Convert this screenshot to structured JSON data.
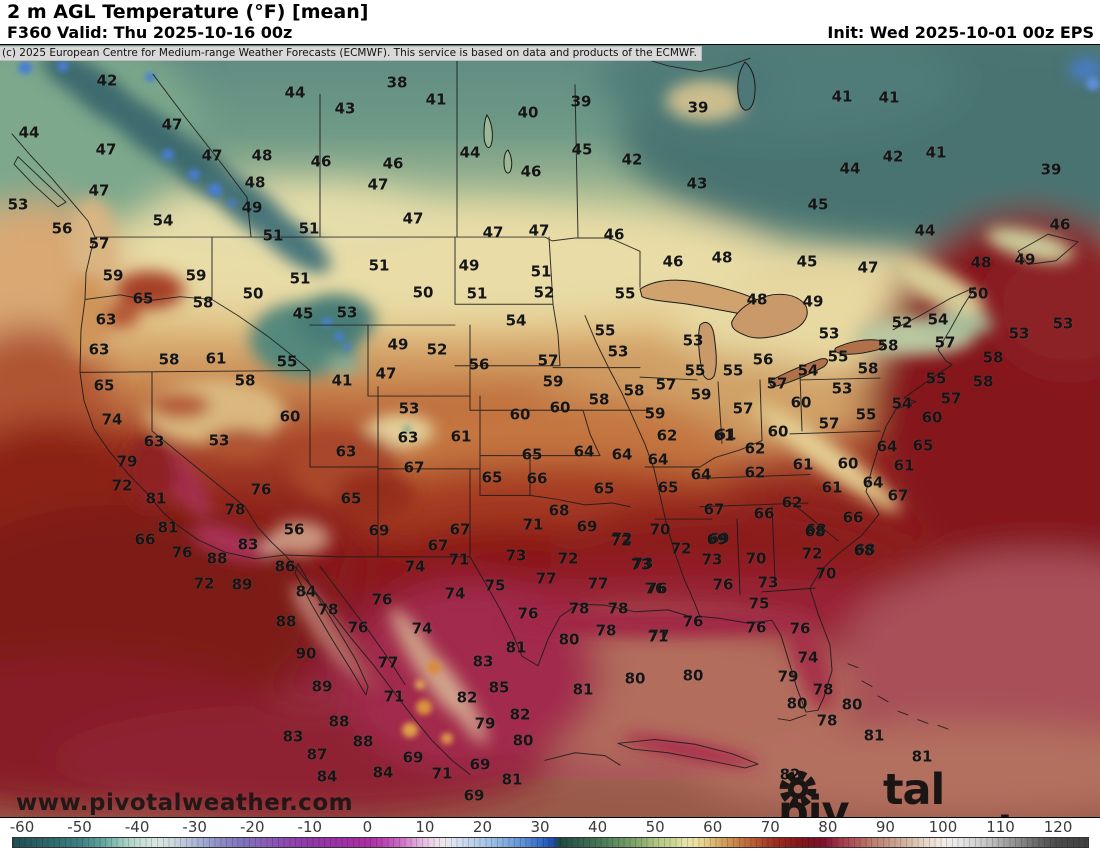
{
  "header": {
    "title": "2 m AGL Temperature (°F) [mean]",
    "valid": "F360 Valid: Thu 2025-10-16 00z",
    "init": "Init: Wed 2025-10-01 00z EPS",
    "copyright": "(c) 2025 European Centre for Medium-range Weather Forecasts (ECMWF). This service is based on data and products of the ECMWF."
  },
  "watermarks": {
    "url": "www.pivotalweather.com",
    "logo_left": "piv",
    "logo_right": "tal weather",
    "logo_icon": "gear-icon"
  },
  "colorbar": {
    "unit": "°F",
    "min_value": -62,
    "max_value": 125,
    "ticks": [
      -60,
      -50,
      -40,
      -30,
      -20,
      -10,
      0,
      10,
      20,
      30,
      40,
      50,
      60,
      70,
      80,
      90,
      100,
      110,
      120
    ],
    "stops": [
      [
        -62,
        "#214e56"
      ],
      [
        -55,
        "#2f6b6e"
      ],
      [
        -50,
        "#3f8285"
      ],
      [
        -46,
        "#6aa8a2"
      ],
      [
        -43,
        "#9ccac0"
      ],
      [
        -40,
        "#c4ded4"
      ],
      [
        -37,
        "#d8e5e2"
      ],
      [
        -34,
        "#cbd7dd"
      ],
      [
        -30,
        "#a9b4d4"
      ],
      [
        -26,
        "#8d8cc6"
      ],
      [
        -22,
        "#7f72bd"
      ],
      [
        -18,
        "#8a5cb8"
      ],
      [
        -14,
        "#8f46af"
      ],
      [
        -10,
        "#8f37a9"
      ],
      [
        -6,
        "#9c32a6"
      ],
      [
        -2,
        "#a72ea3"
      ],
      [
        0,
        "#ab2fa4"
      ],
      [
        2,
        "#b83eae"
      ],
      [
        5,
        "#c866c2"
      ],
      [
        7,
        "#d591d0"
      ],
      [
        9,
        "#e3b5de"
      ],
      [
        11,
        "#ecd5e8"
      ],
      [
        13,
        "#eee7ec"
      ],
      [
        15,
        "#d9e1f0"
      ],
      [
        18,
        "#bdd0ec"
      ],
      [
        21,
        "#9fc0e6"
      ],
      [
        24,
        "#7fa9dc"
      ],
      [
        27,
        "#5b8dd2"
      ],
      [
        30,
        "#3168c4"
      ],
      [
        32,
        "#1f4cae"
      ],
      [
        33,
        "#1d473f"
      ],
      [
        35,
        "#2a574a"
      ],
      [
        38,
        "#3b6a52"
      ],
      [
        41,
        "#4f7e5b"
      ],
      [
        44,
        "#699462"
      ],
      [
        47,
        "#88aa6e"
      ],
      [
        50,
        "#b0c584"
      ],
      [
        53,
        "#ccd796"
      ],
      [
        55,
        "#e6e2ac"
      ],
      [
        57,
        "#eadfa0"
      ],
      [
        59,
        "#e2c57e"
      ],
      [
        61,
        "#d5a763"
      ],
      [
        63,
        "#cb8d50"
      ],
      [
        65,
        "#c2723f"
      ],
      [
        67,
        "#b75b33"
      ],
      [
        69,
        "#a84029"
      ],
      [
        71,
        "#992b20"
      ],
      [
        73,
        "#8e1f1b"
      ],
      [
        75,
        "#85161a"
      ],
      [
        77,
        "#7d1120"
      ],
      [
        79,
        "#7d122b"
      ],
      [
        80,
        "#8d1d38"
      ],
      [
        82,
        "#a23a4e"
      ],
      [
        84,
        "#ae5058"
      ],
      [
        86,
        "#b66a62"
      ],
      [
        88,
        "#bd8171"
      ],
      [
        90,
        "#c49383"
      ],
      [
        92,
        "#cda795"
      ],
      [
        94,
        "#d7bba8"
      ],
      [
        96,
        "#e2cfc0"
      ],
      [
        98,
        "#ecdfd4"
      ],
      [
        100,
        "#f2ece6"
      ],
      [
        102,
        "#e9e9e9"
      ],
      [
        104,
        "#dcdcdc"
      ],
      [
        106,
        "#cecece"
      ],
      [
        108,
        "#bfbfbf"
      ],
      [
        110,
        "#a9a9a9"
      ],
      [
        112,
        "#959595"
      ],
      [
        114,
        "#7f7f7f"
      ],
      [
        116,
        "#6a6a6a"
      ],
      [
        118,
        "#585858"
      ],
      [
        120,
        "#4b4b4b"
      ],
      [
        125,
        "#3f3f3f"
      ]
    ]
  },
  "map": {
    "labels": [
      [
        107,
        80,
        42
      ],
      [
        295,
        92,
        44
      ],
      [
        345,
        108,
        43
      ],
      [
        172,
        124,
        47
      ],
      [
        29,
        132,
        44
      ],
      [
        106,
        149,
        47
      ],
      [
        212,
        155,
        47
      ],
      [
        262,
        155,
        48
      ],
      [
        321,
        161,
        46
      ],
      [
        255,
        182,
        48
      ],
      [
        99,
        190,
        47
      ],
      [
        252,
        207,
        49
      ],
      [
        18,
        204,
        53
      ],
      [
        163,
        220,
        54
      ],
      [
        62,
        228,
        56
      ],
      [
        309,
        228,
        51
      ],
      [
        273,
        235,
        51
      ],
      [
        99,
        243,
        57
      ],
      [
        113,
        275,
        59
      ],
      [
        196,
        275,
        59
      ],
      [
        300,
        278,
        51
      ],
      [
        253,
        293,
        50
      ],
      [
        143,
        298,
        65
      ],
      [
        203,
        302,
        58
      ],
      [
        303,
        313,
        45
      ],
      [
        347,
        312,
        53
      ],
      [
        106,
        319,
        63
      ],
      [
        397,
        82,
        38
      ],
      [
        436,
        99,
        41
      ],
      [
        528,
        112,
        40
      ],
      [
        581,
        101,
        39
      ],
      [
        698,
        107,
        39
      ],
      [
        470,
        152,
        44
      ],
      [
        582,
        149,
        45
      ],
      [
        632,
        159,
        42
      ],
      [
        393,
        163,
        46
      ],
      [
        531,
        171,
        46
      ],
      [
        697,
        183,
        43
      ],
      [
        378,
        184,
        47
      ],
      [
        413,
        218,
        47
      ],
      [
        493,
        232,
        47
      ],
      [
        539,
        230,
        47
      ],
      [
        614,
        234,
        46
      ],
      [
        673,
        261,
        46
      ],
      [
        722,
        257,
        48
      ],
      [
        379,
        265,
        51
      ],
      [
        469,
        265,
        49
      ],
      [
        541,
        271,
        51
      ],
      [
        423,
        292,
        50
      ],
      [
        477,
        293,
        51
      ],
      [
        544,
        292,
        52
      ],
      [
        625,
        293,
        55
      ],
      [
        516,
        320,
        54
      ],
      [
        842,
        96,
        41
      ],
      [
        889,
        97,
        41
      ],
      [
        893,
        156,
        42
      ],
      [
        936,
        152,
        41
      ],
      [
        1051,
        169,
        39
      ],
      [
        850,
        168,
        44
      ],
      [
        818,
        204,
        45
      ],
      [
        925,
        230,
        44
      ],
      [
        1060,
        224,
        46
      ],
      [
        807,
        261,
        45
      ],
      [
        868,
        267,
        47
      ],
      [
        981,
        262,
        48
      ],
      [
        1025,
        259,
        49
      ],
      [
        978,
        293,
        50
      ],
      [
        757,
        299,
        48
      ],
      [
        813,
        301,
        49
      ],
      [
        902,
        322,
        52
      ],
      [
        938,
        319,
        54
      ],
      [
        1019,
        333,
        53
      ],
      [
        1063,
        323,
        53
      ],
      [
        99,
        349,
        63
      ],
      [
        169,
        359,
        58
      ],
      [
        216,
        358,
        61
      ],
      [
        287,
        361,
        55
      ],
      [
        245,
        380,
        58
      ],
      [
        342,
        380,
        41
      ],
      [
        104,
        385,
        65
      ],
      [
        112,
        419,
        74
      ],
      [
        290,
        416,
        60
      ],
      [
        154,
        441,
        63
      ],
      [
        219,
        440,
        53
      ],
      [
        346,
        451,
        63
      ],
      [
        127,
        461,
        79
      ],
      [
        122,
        485,
        72
      ],
      [
        156,
        498,
        81
      ],
      [
        261,
        489,
        76
      ],
      [
        351,
        498,
        65
      ],
      [
        235,
        509,
        78
      ],
      [
        168,
        527,
        81
      ],
      [
        294,
        529,
        56
      ],
      [
        145,
        539,
        66
      ],
      [
        182,
        552,
        76
      ],
      [
        248,
        544,
        83
      ],
      [
        217,
        558,
        88
      ],
      [
        285,
        566,
        86
      ],
      [
        398,
        344,
        49
      ],
      [
        437,
        349,
        52
      ],
      [
        386,
        373,
        47
      ],
      [
        479,
        364,
        56
      ],
      [
        548,
        360,
        57
      ],
      [
        553,
        381,
        59
      ],
      [
        409,
        408,
        53
      ],
      [
        520,
        414,
        60
      ],
      [
        560,
        407,
        60
      ],
      [
        408,
        437,
        63
      ],
      [
        461,
        436,
        61
      ],
      [
        414,
        467,
        67
      ],
      [
        532,
        454,
        65
      ],
      [
        584,
        451,
        64
      ],
      [
        622,
        454,
        64
      ],
      [
        658,
        459,
        64
      ],
      [
        492,
        477,
        65
      ],
      [
        537,
        478,
        66
      ],
      [
        604,
        488,
        65
      ],
      [
        668,
        487,
        65
      ],
      [
        605,
        330,
        55
      ],
      [
        618,
        351,
        53
      ],
      [
        693,
        340,
        53
      ],
      [
        829,
        333,
        53
      ],
      [
        695,
        370,
        55
      ],
      [
        733,
        370,
        55
      ],
      [
        763,
        359,
        56
      ],
      [
        838,
        356,
        55
      ],
      [
        888,
        345,
        58
      ],
      [
        868,
        368,
        58
      ],
      [
        808,
        370,
        54
      ],
      [
        666,
        384,
        57
      ],
      [
        634,
        390,
        58
      ],
      [
        701,
        394,
        59
      ],
      [
        777,
        383,
        57
      ],
      [
        801,
        402,
        60
      ],
      [
        842,
        388,
        53
      ],
      [
        743,
        408,
        57
      ],
      [
        655,
        413,
        59
      ],
      [
        902,
        403,
        54
      ],
      [
        866,
        414,
        55
      ],
      [
        829,
        423,
        57
      ],
      [
        778,
        431,
        60
      ],
      [
        726,
        434,
        61
      ],
      [
        667,
        435,
        62
      ],
      [
        599,
        399,
        58
      ],
      [
        945,
        342,
        57
      ],
      [
        936,
        378,
        55
      ],
      [
        993,
        357,
        58
      ],
      [
        983,
        381,
        58
      ],
      [
        951,
        398,
        57
      ],
      [
        932,
        417,
        60
      ],
      [
        755,
        448,
        62
      ],
      [
        755,
        472,
        62
      ],
      [
        803,
        464,
        61
      ],
      [
        848,
        463,
        60
      ],
      [
        887,
        446,
        64
      ],
      [
        923,
        445,
        65
      ],
      [
        904,
        465,
        61
      ],
      [
        832,
        487,
        61
      ],
      [
        873,
        482,
        64
      ],
      [
        792,
        502,
        62
      ],
      [
        898,
        495,
        67
      ],
      [
        764,
        513,
        66
      ],
      [
        853,
        517,
        66
      ],
      [
        816,
        529,
        68
      ],
      [
        865,
        549,
        68
      ],
      [
        812,
        553,
        72
      ],
      [
        756,
        558,
        70
      ],
      [
        714,
        509,
        67
      ],
      [
        724,
        435,
        61
      ],
      [
        379,
        530,
        69
      ],
      [
        460,
        529,
        67
      ],
      [
        559,
        510,
        68
      ],
      [
        438,
        545,
        67
      ],
      [
        533,
        524,
        71
      ],
      [
        587,
        526,
        69
      ],
      [
        660,
        529,
        70
      ],
      [
        719,
        538,
        69
      ],
      [
        622,
        538,
        72
      ],
      [
        681,
        548,
        72
      ],
      [
        459,
        559,
        71
      ],
      [
        516,
        555,
        73
      ],
      [
        568,
        558,
        72
      ],
      [
        643,
        563,
        73
      ],
      [
        712,
        559,
        73
      ],
      [
        415,
        566,
        74
      ],
      [
        701,
        474,
        64
      ],
      [
        495,
        585,
        75
      ],
      [
        546,
        578,
        77
      ],
      [
        598,
        583,
        77
      ],
      [
        655,
        588,
        76
      ],
      [
        723,
        584,
        76
      ],
      [
        382,
        599,
        76
      ],
      [
        455,
        593,
        74
      ],
      [
        528,
        613,
        76
      ],
      [
        579,
        608,
        78
      ],
      [
        618,
        608,
        78
      ],
      [
        693,
        621,
        76
      ],
      [
        422,
        628,
        74
      ],
      [
        606,
        630,
        78
      ],
      [
        659,
        635,
        77
      ],
      [
        569,
        639,
        80
      ],
      [
        516,
        647,
        81
      ],
      [
        388,
        662,
        77
      ],
      [
        483,
        661,
        83
      ],
      [
        394,
        696,
        71
      ],
      [
        499,
        687,
        85
      ],
      [
        467,
        697,
        82
      ],
      [
        485,
        723,
        79
      ],
      [
        520,
        714,
        82
      ],
      [
        523,
        740,
        80
      ],
      [
        583,
        689,
        81
      ],
      [
        635,
        678,
        80
      ],
      [
        693,
        675,
        80
      ],
      [
        512,
        779,
        81
      ],
      [
        204,
        583,
        72
      ],
      [
        242,
        584,
        89
      ],
      [
        306,
        591,
        84
      ],
      [
        328,
        609,
        78
      ],
      [
        358,
        627,
        76
      ],
      [
        286,
        621,
        88
      ],
      [
        306,
        653,
        90
      ],
      [
        322,
        686,
        89
      ],
      [
        339,
        721,
        88
      ],
      [
        363,
        741,
        88
      ],
      [
        293,
        736,
        83
      ],
      [
        317,
        754,
        87
      ],
      [
        327,
        776,
        84
      ],
      [
        413,
        757,
        69
      ],
      [
        383,
        772,
        84
      ],
      [
        442,
        773,
        71
      ],
      [
        480,
        764,
        69
      ],
      [
        474,
        795,
        69
      ],
      [
        621,
        540,
        72
      ],
      [
        717,
        539,
        69
      ],
      [
        815,
        531,
        68
      ],
      [
        864,
        550,
        68
      ],
      [
        641,
        564,
        73
      ],
      [
        826,
        573,
        70
      ],
      [
        657,
        588,
        76
      ],
      [
        768,
        582,
        73
      ],
      [
        759,
        603,
        75
      ],
      [
        756,
        627,
        76
      ],
      [
        800,
        628,
        76
      ],
      [
        658,
        636,
        71
      ],
      [
        808,
        657,
        74
      ],
      [
        788,
        676,
        79
      ],
      [
        823,
        689,
        78
      ],
      [
        797,
        703,
        80
      ],
      [
        852,
        704,
        80
      ],
      [
        827,
        720,
        78
      ],
      [
        874,
        735,
        81
      ],
      [
        922,
        756,
        81
      ],
      [
        790,
        774,
        82
      ]
    ]
  }
}
